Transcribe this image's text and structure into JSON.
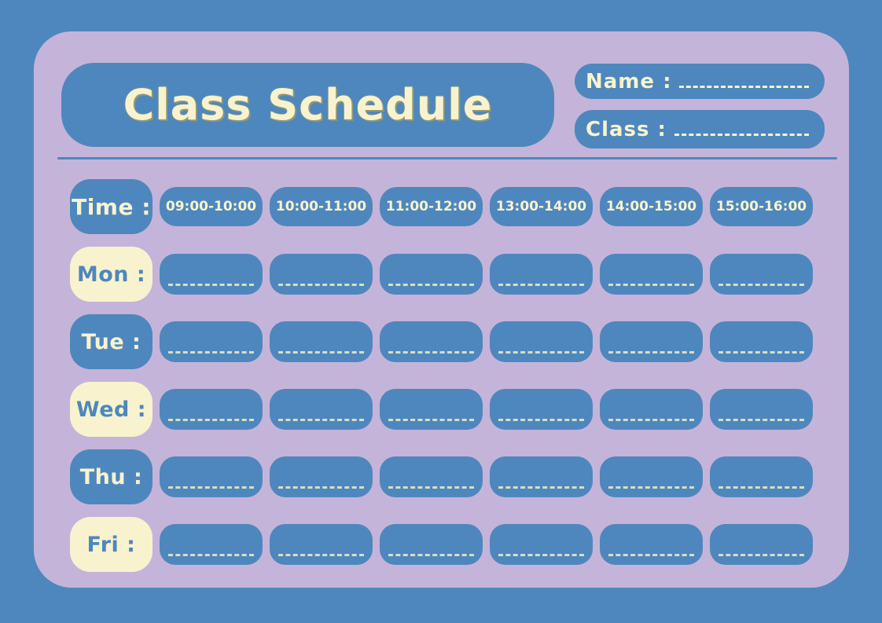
{
  "colors": {
    "background_blue": "#4E87BD",
    "card_lavender": "#C5B4D9",
    "cream": "#F8F3CE",
    "title_shadow_olive": "#8F9878"
  },
  "header": {
    "title": "Class Schedule",
    "name_label": "Name :",
    "class_label": "Class :"
  },
  "schedule": {
    "time_label": "Time :",
    "time_slots": [
      "09:00-10:00",
      "10:00-11:00",
      "11:00-12:00",
      "13:00-14:00",
      "14:00-15:00",
      "15:00-16:00"
    ],
    "days": [
      {
        "label": "Mon :",
        "style": "cream"
      },
      {
        "label": "Tue :",
        "style": "blue"
      },
      {
        "label": "Wed :",
        "style": "cream"
      },
      {
        "label": "Thu :",
        "style": "blue"
      },
      {
        "label": "Fri :",
        "style": "cream"
      }
    ]
  }
}
